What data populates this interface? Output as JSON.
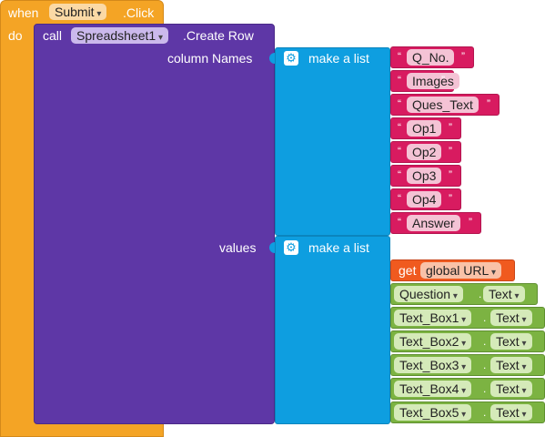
{
  "event": {
    "when": "when",
    "component": "Submit",
    "event_name": ".Click",
    "do": "do"
  },
  "call": {
    "call": "call",
    "component": "Spreadsheet1",
    "method": ".Create Row",
    "column_names_label": "column Names",
    "values_label": "values"
  },
  "make_list": {
    "label": "make a list"
  },
  "column_names": [
    "Q_No.",
    "Images",
    "Ques_Text",
    "Op1",
    "Op2",
    "Op3",
    "Op4",
    "Answer"
  ],
  "quote_open": "“",
  "quote_close": "”",
  "get": {
    "label": "get",
    "variable": "global URL"
  },
  "values_items": [
    {
      "component": "Question",
      "property": "Text"
    },
    {
      "component": "Text_Box1",
      "property": "Text"
    },
    {
      "component": "Text_Box2",
      "property": "Text"
    },
    {
      "component": "Text_Box3",
      "property": "Text"
    },
    {
      "component": "Text_Box4",
      "property": "Text"
    },
    {
      "component": "Text_Box5",
      "property": "Text"
    }
  ],
  "dot": ".",
  "colors": {
    "event": "#f4a425",
    "procedure": "#5e37a6",
    "list": "#0e9ee0",
    "text": "#d81b60",
    "variable": "#f05a1f",
    "component": "#7cb342"
  },
  "icons": {
    "mutator": "gear-icon",
    "dropdown": "chevron-down-icon"
  }
}
